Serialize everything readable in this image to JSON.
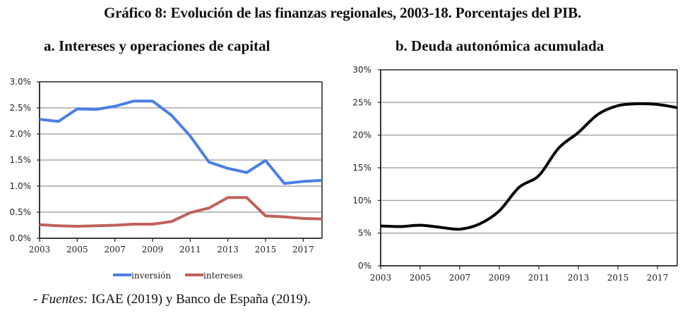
{
  "title": "Gráfico 8: Evolución de las finanzas regionales, 2003-18. Porcentajes del PIB.",
  "source": {
    "prefix": "- ",
    "label": "Fuentes:",
    "text": " IGAE (2019) y Banco de España (2019)."
  },
  "chart_data": [
    {
      "type": "line",
      "title": "a. Intereses y operaciones de capital",
      "xlabel": "",
      "ylabel": "",
      "x": [
        2003,
        2004,
        2005,
        2006,
        2007,
        2008,
        2009,
        2010,
        2011,
        2012,
        2013,
        2014,
        2015,
        2016,
        2017,
        2018
      ],
      "x_tick_labels": [
        "2003",
        "2005",
        "2007",
        "2009",
        "2011",
        "2013",
        "2015",
        "2017"
      ],
      "y_tick_labels": [
        "0.0%",
        "0.5%",
        "1.0%",
        "1.5%",
        "2.0%",
        "2.5%",
        "3.0%"
      ],
      "ylim": [
        0,
        3.0
      ],
      "xlim": [
        2003,
        2018
      ],
      "grid": true,
      "legend_position": "bottom",
      "series": [
        {
          "name": "inversión",
          "color": "#4a7fe6",
          "values": [
            2.28,
            2.24,
            2.48,
            2.47,
            2.53,
            2.63,
            2.63,
            2.36,
            1.96,
            1.46,
            1.34,
            1.26,
            1.49,
            1.05,
            1.09,
            1.11
          ]
        },
        {
          "name": "intereses",
          "color": "#c0605a",
          "values": [
            0.26,
            0.24,
            0.23,
            0.24,
            0.25,
            0.27,
            0.27,
            0.32,
            0.49,
            0.58,
            0.78,
            0.78,
            0.43,
            0.41,
            0.38,
            0.37
          ]
        }
      ]
    },
    {
      "type": "line",
      "title": "b. Deuda autonómica acumulada",
      "xlabel": "",
      "ylabel": "",
      "x": [
        2003,
        2004,
        2005,
        2006,
        2007,
        2008,
        2009,
        2010,
        2011,
        2012,
        2013,
        2014,
        2015,
        2016,
        2017,
        2018
      ],
      "x_tick_labels": [
        "2003",
        "2005",
        "2007",
        "2009",
        "2011",
        "2013",
        "2015",
        "2017"
      ],
      "y_tick_labels": [
        "0%",
        "5%",
        "10%",
        "15%",
        "20%",
        "25%",
        "30%"
      ],
      "ylim": [
        0,
        30
      ],
      "xlim": [
        2003,
        2018
      ],
      "grid": true,
      "legend_position": "none",
      "series": [
        {
          "name": "deuda",
          "color": "#000000",
          "values": [
            6.1,
            6.0,
            6.2,
            5.9,
            5.6,
            6.4,
            8.4,
            12.0,
            13.8,
            18.0,
            20.4,
            23.2,
            24.5,
            24.8,
            24.7,
            24.2
          ]
        }
      ]
    }
  ]
}
